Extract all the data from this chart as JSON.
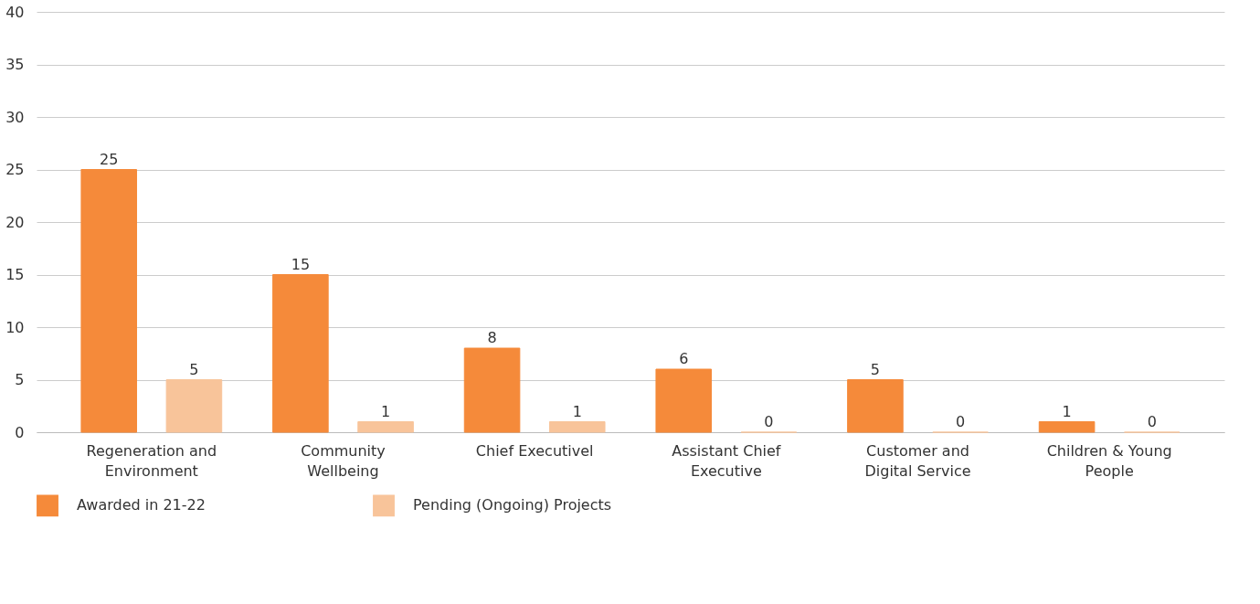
{
  "chart_data": {
    "type": "bar",
    "categories": [
      "Regeneration and Environment",
      "Community Wellbeing",
      "Chief Executivel",
      "Assistant Chief Executive",
      "Customer and Digital Service",
      "Children & Young People"
    ],
    "series": [
      {
        "name": "Awarded in 21-22",
        "color": "#f58a3a",
        "values": [
          25,
          15,
          8,
          6,
          5,
          1
        ]
      },
      {
        "name": "Pending (Ongoing) Projects",
        "color": "#f8c49a",
        "values": [
          5,
          1,
          1,
          0,
          0,
          0
        ]
      }
    ],
    "ylim": [
      0,
      40
    ],
    "yticks": [
      0,
      5,
      10,
      15,
      20,
      25,
      30,
      35,
      40
    ],
    "grid": "y",
    "legend": "bottom",
    "data_labels": true
  }
}
